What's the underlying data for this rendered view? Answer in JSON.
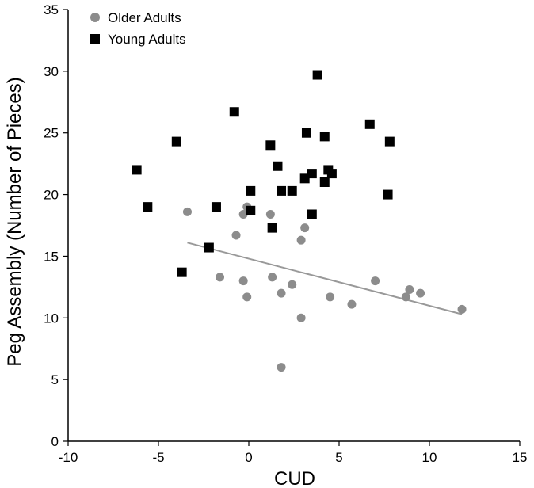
{
  "chart_data": {
    "type": "scatter",
    "title": "",
    "xlabel": "CUD",
    "ylabel": "Peg Assembly (Number of Pieces)",
    "xlim": [
      -10,
      15
    ],
    "ylim": [
      0,
      35
    ],
    "xticks": [
      -10,
      -5,
      0,
      5,
      10,
      15
    ],
    "yticks": [
      0,
      5,
      10,
      15,
      20,
      25,
      30,
      35
    ],
    "grid": false,
    "legend_position": "top-left",
    "series": [
      {
        "name": "Older Adults",
        "marker": "circle",
        "color": "#8c8c8c",
        "points": [
          [
            -3.4,
            18.6
          ],
          [
            -0.7,
            16.7
          ],
          [
            -0.3,
            18.4
          ],
          [
            -0.1,
            19.0
          ],
          [
            1.2,
            18.4
          ],
          [
            2.9,
            16.3
          ],
          [
            3.1,
            17.3
          ],
          [
            -1.6,
            13.3
          ],
          [
            -0.3,
            13.0
          ],
          [
            -0.1,
            11.7
          ],
          [
            1.3,
            13.3
          ],
          [
            1.8,
            12.0
          ],
          [
            2.4,
            12.7
          ],
          [
            2.9,
            10.0
          ],
          [
            1.8,
            6.0
          ],
          [
            4.5,
            11.7
          ],
          [
            5.7,
            11.1
          ],
          [
            7.0,
            13.0
          ],
          [
            8.7,
            11.7
          ],
          [
            8.9,
            12.3
          ],
          [
            9.5,
            12.0
          ],
          [
            11.8,
            10.7
          ]
        ]
      },
      {
        "name": "Young Adults",
        "marker": "square",
        "color": "#000000",
        "points": [
          [
            -6.2,
            22.0
          ],
          [
            -5.6,
            19.0
          ],
          [
            -4.0,
            24.3
          ],
          [
            -3.7,
            13.7
          ],
          [
            -2.2,
            15.7
          ],
          [
            -1.8,
            19.0
          ],
          [
            -0.8,
            26.7
          ],
          [
            0.1,
            18.7
          ],
          [
            0.1,
            20.3
          ],
          [
            1.2,
            24.0
          ],
          [
            1.3,
            17.3
          ],
          [
            1.6,
            22.3
          ],
          [
            1.8,
            20.3
          ],
          [
            2.4,
            20.3
          ],
          [
            3.1,
            21.3
          ],
          [
            3.2,
            25.0
          ],
          [
            3.5,
            21.7
          ],
          [
            3.5,
            18.4
          ],
          [
            3.8,
            29.7
          ],
          [
            4.2,
            24.7
          ],
          [
            4.2,
            21.0
          ],
          [
            4.4,
            22.0
          ],
          [
            4.6,
            21.7
          ],
          [
            6.7,
            25.7
          ],
          [
            7.7,
            20.0
          ],
          [
            7.8,
            24.3
          ]
        ]
      }
    ],
    "trendlines": [
      {
        "series": "Older Adults",
        "color": "#999999",
        "from": [
          -3.4,
          16.1
        ],
        "to": [
          11.8,
          10.3
        ]
      }
    ]
  }
}
